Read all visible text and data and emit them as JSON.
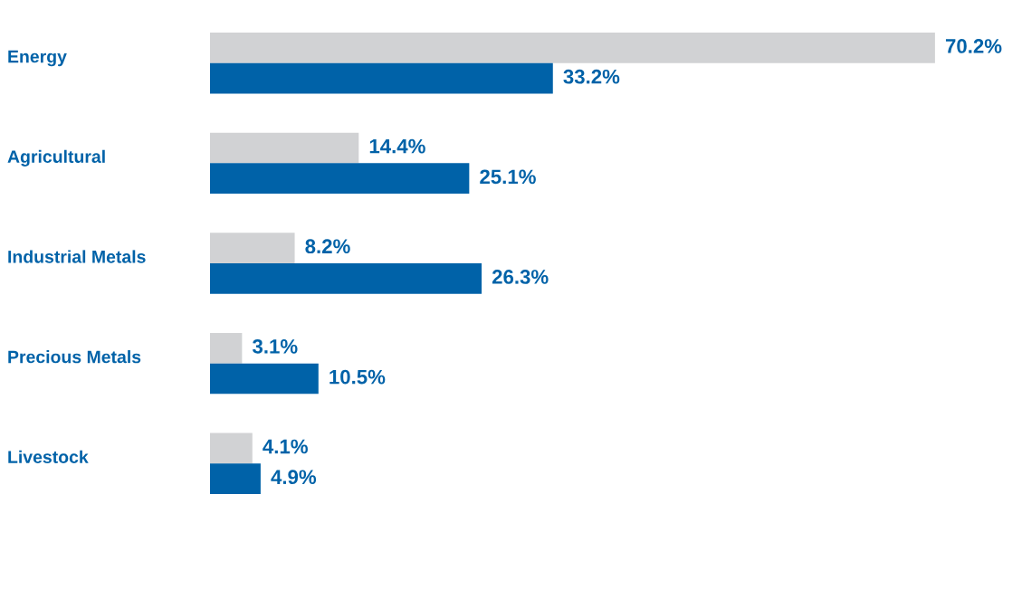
{
  "chart_data": {
    "type": "bar",
    "orientation": "horizontal",
    "categories": [
      "Energy",
      "Agricultural",
      "Industrial Metals",
      "Precious Metals",
      "Livestock"
    ],
    "series": [
      {
        "color": "#d1d2d4",
        "values": [
          70.2,
          14.4,
          8.2,
          3.1,
          4.1
        ],
        "value_labels": [
          "70.2%",
          "14.4%",
          "8.2%",
          "3.1%",
          "4.1%"
        ]
      },
      {
        "color": "#0062a8",
        "values": [
          33.2,
          25.1,
          26.3,
          10.5,
          4.9
        ],
        "value_labels": [
          "33.2%",
          "25.1%",
          "26.3%",
          "10.5%",
          "4.9%"
        ]
      }
    ]
  }
}
